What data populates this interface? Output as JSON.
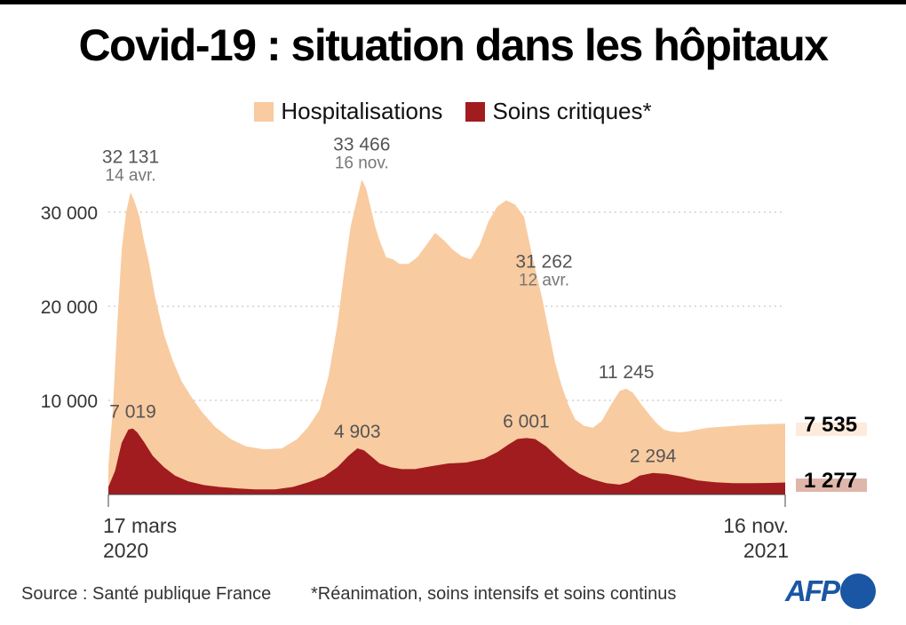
{
  "header": {
    "title": "Covid-19 : situation dans les hôpitaux"
  },
  "colors": {
    "hospitalisations": "#f9cba0",
    "soins_critiques": "#a01c1f",
    "grid": "#bbbbbb",
    "afp_blue": "#1a56a4",
    "last_hosp_bg": "#fdebdc",
    "last_crit_bg": "#dfb6aa"
  },
  "footer": {
    "source": "Source : Santé publique France",
    "note": "*Réanimation, soins intensifs et soins continus",
    "logo": "AFP"
  },
  "chart_data": {
    "type": "area",
    "title": "Covid-19 : situation dans les hôpitaux",
    "xlabel": "",
    "ylabel": "",
    "ylim": [
      0,
      35000
    ],
    "yticks": [
      10000,
      20000,
      30000
    ],
    "ytick_labels": [
      "10 000",
      "20 000",
      "30 000"
    ],
    "grid": true,
    "legend_position": "top-center",
    "x_start_label": [
      "17 mars",
      "2020"
    ],
    "x_end_label": [
      "16 nov.",
      "2021"
    ],
    "x_days_total": 609,
    "legend": [
      "Hospitalisations",
      "Soins critiques*"
    ],
    "series": [
      {
        "name": "Hospitalisations",
        "x_days": [
          0,
          4,
          8,
          12,
          16,
          20,
          24,
          28,
          32,
          36,
          42,
          50,
          58,
          66,
          74,
          84,
          96,
          110,
          124,
          140,
          156,
          170,
          180,
          190,
          198,
          206,
          212,
          218,
          224,
          228,
          232,
          236,
          240,
          244,
          250,
          256,
          262,
          270,
          278,
          286,
          294,
          302,
          310,
          318,
          326,
          334,
          342,
          350,
          358,
          366,
          374,
          382,
          390,
          396,
          402,
          408,
          414,
          420,
          428,
          436,
          444,
          452,
          460,
          466,
          472,
          480,
          488,
          494,
          500,
          506,
          514,
          522,
          530,
          540,
          552,
          564,
          576,
          588,
          600,
          609
        ],
        "values": [
          3000,
          9000,
          18000,
          26000,
          30000,
          32131,
          31000,
          29500,
          27000,
          25000,
          21000,
          17000,
          14200,
          12000,
          10500,
          8800,
          7200,
          5900,
          5100,
          4800,
          4900,
          5900,
          7200,
          9000,
          12500,
          18000,
          23500,
          28500,
          31500,
          33466,
          32500,
          30500,
          28500,
          27000,
          25200,
          25000,
          24500,
          24500,
          25200,
          26500,
          27800,
          27000,
          26000,
          25300,
          25000,
          26500,
          29000,
          30600,
          31262,
          30800,
          29500,
          25000,
          21000,
          17500,
          14000,
          11500,
          9500,
          8000,
          7300,
          7100,
          7800,
          9500,
          11000,
          11245,
          10800,
          9500,
          8300,
          7500,
          6900,
          6700,
          6600,
          6700,
          6900,
          7100,
          7200,
          7300,
          7400,
          7450,
          7500,
          7535
        ]
      },
      {
        "name": "Soins critiques*",
        "x_days": [
          0,
          6,
          12,
          18,
          22,
          26,
          32,
          40,
          50,
          60,
          72,
          86,
          100,
          116,
          132,
          150,
          166,
          180,
          194,
          206,
          216,
          224,
          230,
          236,
          244,
          254,
          264,
          276,
          290,
          306,
          322,
          338,
          350,
          360,
          368,
          376,
          384,
          394,
          404,
          414,
          424,
          436,
          448,
          460,
          468,
          478,
          490,
          502,
          516,
          530,
          546,
          562,
          580,
          596,
          609
        ],
        "values": [
          800,
          2500,
          5500,
          6900,
          7019,
          6600,
          5600,
          4100,
          2900,
          2000,
          1400,
          1000,
          800,
          650,
          550,
          550,
          800,
          1300,
          1900,
          2900,
          4100,
          4903,
          4700,
          4100,
          3300,
          2900,
          2700,
          2700,
          3000,
          3300,
          3400,
          3800,
          4500,
          5300,
          5900,
          6001,
          5900,
          5100,
          4000,
          3000,
          2200,
          1600,
          1200,
          1050,
          1300,
          2000,
          2294,
          2200,
          1900,
          1500,
          1300,
          1200,
          1200,
          1230,
          1277
        ]
      }
    ],
    "annotations": [
      {
        "series": "Hospitalisations",
        "x_day": 20,
        "value": "32 131",
        "date": "14 avr."
      },
      {
        "series": "Hospitalisations",
        "x_day": 228,
        "value": "33 466",
        "date": "16 nov."
      },
      {
        "series": "Hospitalisations",
        "x_day": 392,
        "value": "31 262",
        "date": "12 avr."
      },
      {
        "series": "Hospitalisations",
        "x_day": 466,
        "value": "11 245",
        "date": ""
      },
      {
        "series": "Soins critiques*",
        "x_day": 22,
        "value": "7 019",
        "date": ""
      },
      {
        "series": "Soins critiques*",
        "x_day": 224,
        "value": "4 903",
        "date": ""
      },
      {
        "series": "Soins critiques*",
        "x_day": 376,
        "value": "6 001",
        "date": ""
      },
      {
        "series": "Soins critiques*",
        "x_day": 490,
        "value": "2 294",
        "date": ""
      }
    ],
    "last_values": [
      {
        "series": "Hospitalisations",
        "value": 7535,
        "label": "7 535"
      },
      {
        "series": "Soins critiques*",
        "value": 1277,
        "label": "1 277"
      }
    ]
  }
}
